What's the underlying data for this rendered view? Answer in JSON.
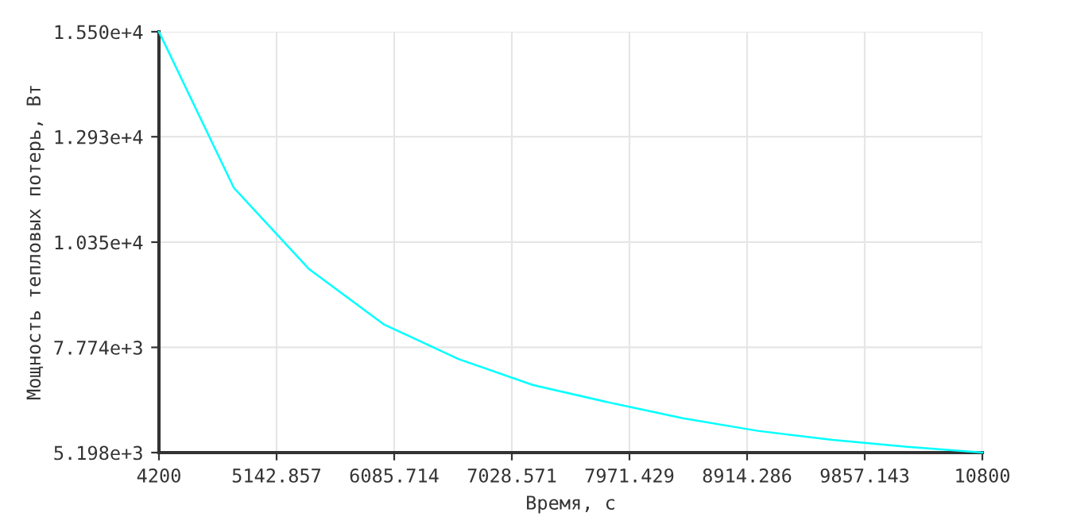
{
  "chart_data": {
    "type": "line",
    "xlabel": "Время, с",
    "ylabel": "Мощность тепловых потерь, Вт",
    "x": [
      4200,
      4800,
      5400,
      6000,
      6600,
      7200,
      7800,
      8400,
      9000,
      9600,
      10200,
      10800
    ],
    "series": [
      {
        "color": "#00ffff",
        "values": [
          15500,
          11680,
          9700,
          8340,
          7490,
          6850,
          6430,
          6040,
          5730,
          5510,
          5340,
          5198
        ]
      }
    ],
    "xlim": [
      4200,
      10800
    ],
    "xticks": [
      4200,
      5142.857,
      6085.714,
      7028.571,
      7971.429,
      8914.286,
      9857.143,
      10800
    ],
    "ylim": [
      5198,
      15500
    ],
    "yticks": [
      {
        "value": 5198,
        "label": "5.198e+3"
      },
      {
        "value": 7774,
        "label": "7.774e+3"
      },
      {
        "value": 10350,
        "label": "1.035e+4"
      },
      {
        "value": 12930,
        "label": "1.293e+4"
      },
      {
        "value": 15500,
        "label": "1.550e+4"
      }
    ],
    "grid": true
  }
}
